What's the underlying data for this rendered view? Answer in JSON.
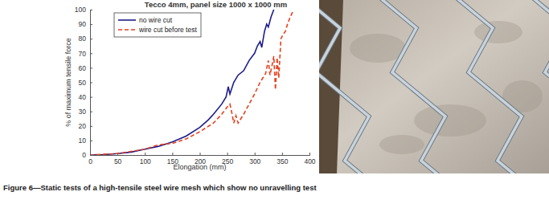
{
  "chart_data": {
    "type": "line",
    "title": "Tecco 4mm, panel size 1000 x 1000 mm",
    "x_label": "Elongation (mm)",
    "y_label": "% of maximum tensile force",
    "xlim": [
      0,
      400
    ],
    "xticks": [
      0,
      50,
      100,
      150,
      200,
      250,
      300,
      350,
      400
    ],
    "ylim": [
      0,
      100
    ],
    "yticks": [
      0,
      10,
      20,
      30,
      40,
      50,
      60,
      70,
      80,
      90,
      100
    ],
    "grid": false,
    "legend": "upper left",
    "series": [
      {
        "name": "no wire cut",
        "color": "#1c1c8a",
        "line_style": "solid",
        "x": [
          0,
          25,
          50,
          75,
          100,
          125,
          150,
          175,
          200,
          215,
          225,
          240,
          248,
          252,
          255,
          262,
          270,
          280,
          290,
          300,
          305,
          310,
          313,
          318,
          322,
          325,
          330,
          335
        ],
        "values": [
          0,
          0.3,
          1,
          2,
          4,
          6,
          9,
          13,
          19,
          24,
          28,
          35,
          40,
          47,
          42,
          50,
          55,
          58,
          65,
          70,
          75,
          78,
          74,
          85,
          90,
          88,
          95,
          100
        ]
      },
      {
        "name": "wire cut before test",
        "color": "#e8401c",
        "line_style": "dashed",
        "x": [
          0,
          50,
          100,
          125,
          150,
          175,
          200,
          225,
          240,
          250,
          255,
          258,
          262,
          266,
          270,
          275,
          280,
          290,
          300,
          310,
          320,
          325,
          328,
          332,
          335,
          338,
          341,
          344,
          348,
          352,
          356,
          360,
          365,
          370
        ],
        "values": [
          0,
          1,
          4,
          7,
          8,
          11,
          16,
          22,
          28,
          33,
          35,
          30,
          22,
          27,
          22,
          25,
          28,
          35,
          42,
          50,
          56,
          65,
          55,
          62,
          68,
          45,
          67,
          53,
          80,
          83,
          85,
          90,
          95,
          99
        ]
      }
    ]
  },
  "caption": "Figure 6—Static tests of a high-tensile steel wire mesh which show no unravelling test"
}
